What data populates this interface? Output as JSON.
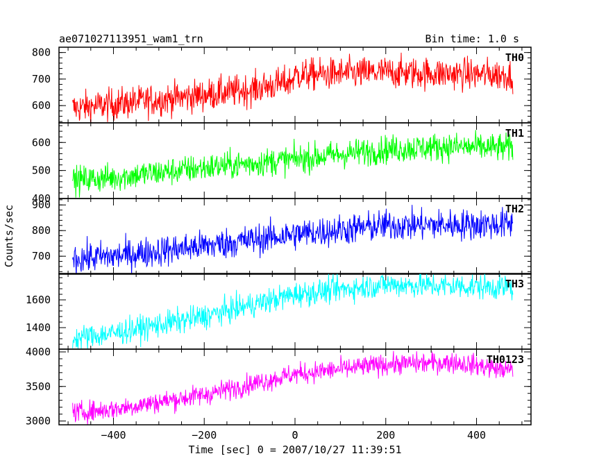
{
  "header": {
    "source_name": "ae071027113951_wam1_trn",
    "bin_time": "Bin time: 1.0 s"
  },
  "axes": {
    "xlabel": "Time [sec] 0 = 2007/10/27 11:39:51",
    "ylabel": "Counts/sec"
  },
  "chart_data": {
    "type": "line",
    "title": "ae071027113951_wam1_trn",
    "xlabel": "Time [sec] 0 = 2007/10/27 11:39:51",
    "ylabel": "Counts/sec",
    "xlim": [
      -520,
      520
    ],
    "x_ticks": [
      -400,
      -200,
      0,
      200,
      400
    ],
    "x_range_data": [
      -490,
      480
    ],
    "bin_time_s": 1.0,
    "panels": [
      {
        "name": "TH0",
        "color": "#ff0000",
        "ylim": [
          535,
          820
        ],
        "y_ticks": [
          600,
          700,
          800
        ],
        "trend": [
          [
            -490,
            590
          ],
          [
            -400,
            605
          ],
          [
            -200,
            640
          ],
          [
            -100,
            660
          ],
          [
            -10,
            690
          ],
          [
            0,
            715
          ],
          [
            200,
            725
          ],
          [
            480,
            715
          ]
        ],
        "noise": 30
      },
      {
        "name": "TH1",
        "color": "#00ff00",
        "ylim": [
          400,
          670
        ],
        "y_ticks": [
          400,
          500,
          600
        ],
        "trend": [
          [
            -490,
            465
          ],
          [
            -400,
            475
          ],
          [
            -200,
            510
          ],
          [
            0,
            540
          ],
          [
            200,
            575
          ],
          [
            330,
            585
          ],
          [
            480,
            580
          ]
        ],
        "noise": 25
      },
      {
        "name": "TH2",
        "color": "#0000ff",
        "ylim": [
          630,
          925
        ],
        "y_ticks": [
          700,
          800,
          900
        ],
        "trend": [
          [
            -490,
            690
          ],
          [
            -400,
            700
          ],
          [
            -200,
            740
          ],
          [
            0,
            785
          ],
          [
            200,
            820
          ],
          [
            480,
            825
          ]
        ],
        "noise": 30
      },
      {
        "name": "TH3",
        "color": "#00ffff",
        "ylim": [
          1245,
          1790
        ],
        "y_ticks": [
          1400,
          1600
        ],
        "trend": [
          [
            -490,
            1320
          ],
          [
            -400,
            1360
          ],
          [
            -200,
            1480
          ],
          [
            0,
            1640
          ],
          [
            200,
            1710
          ],
          [
            480,
            1690
          ]
        ],
        "noise": 45
      },
      {
        "name": "TH0123",
        "color": "#ff00ff",
        "ylim": [
          2945,
          4040
        ],
        "y_ticks": [
          3000,
          3500,
          4000
        ],
        "trend": [
          [
            -490,
            3120
          ],
          [
            -400,
            3170
          ],
          [
            -200,
            3380
          ],
          [
            0,
            3680
          ],
          [
            200,
            3820
          ],
          [
            350,
            3850
          ],
          [
            480,
            3730
          ]
        ],
        "noise": 75
      }
    ]
  }
}
